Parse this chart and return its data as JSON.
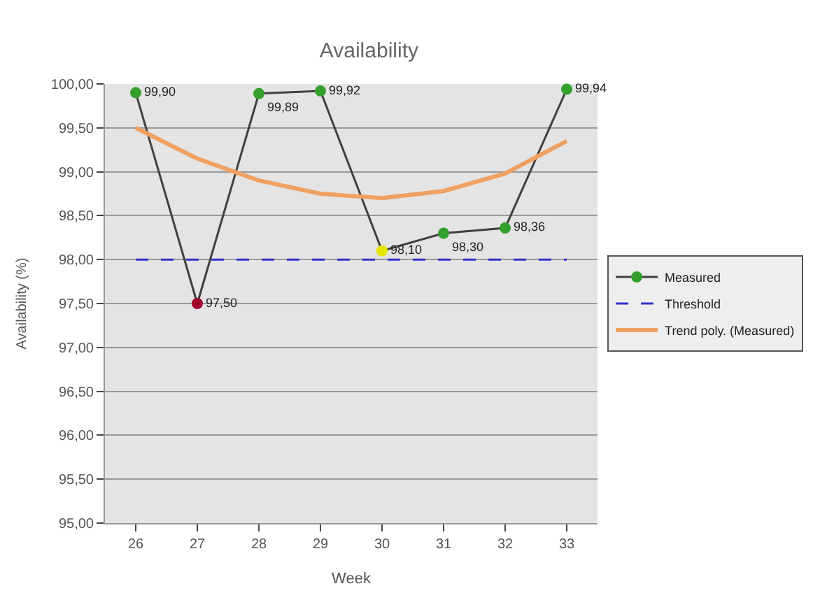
{
  "chart_data": {
    "type": "line",
    "title": "Availability",
    "xlabel": "Week",
    "ylabel": "Availability (%)",
    "categories": [
      "26",
      "27",
      "28",
      "29",
      "30",
      "31",
      "32",
      "33"
    ],
    "series": [
      {
        "name": "Measured",
        "color": "#404040",
        "colors": [
          "#33a02c",
          "#a0002a",
          "#33a02c",
          "#33a02c",
          "#e6e600",
          "#33a02c",
          "#33a02c",
          "#33a02c"
        ],
        "marker": "circle",
        "line_style": "solid",
        "values": [
          99.9,
          97.5,
          99.89,
          99.92,
          98.1,
          98.3,
          98.36,
          99.94
        ],
        "value_labels": [
          "99,90",
          "97,50",
          "99,89",
          "99,92",
          "98,10",
          "98,30",
          "98,36",
          "99,94"
        ]
      },
      {
        "name": "Threshold",
        "color": "#3333cc",
        "marker": "none",
        "line_style": "dashed",
        "values": [
          98.0,
          98.0,
          98.0,
          98.0,
          98.0,
          98.0,
          98.0,
          98.0
        ]
      },
      {
        "name": "Trend poly. (Measured)",
        "color": "#f0a060",
        "marker": "none",
        "line_style": "solid",
        "values": [
          99.5,
          99.15,
          98.9,
          98.75,
          98.7,
          98.78,
          98.98,
          99.35
        ]
      }
    ],
    "ylim": [
      95,
      100
    ],
    "yticks": [
      {
        "value": 95,
        "label": "95,00"
      },
      {
        "value": 95.5,
        "label": "95,50"
      },
      {
        "value": 96,
        "label": "96,00"
      },
      {
        "value": 96.5,
        "label": "96,50"
      },
      {
        "value": 97,
        "label": "97,00"
      },
      {
        "value": 97.5,
        "label": "97,50"
      },
      {
        "value": 98,
        "label": "98,00"
      },
      {
        "value": 98.5,
        "label": "98,50"
      },
      {
        "value": 99,
        "label": "99,00"
      },
      {
        "value": 99.5,
        "label": "99,50"
      },
      {
        "value": 100,
        "label": "100,00"
      }
    ],
    "grid": "y",
    "legend": "right"
  }
}
